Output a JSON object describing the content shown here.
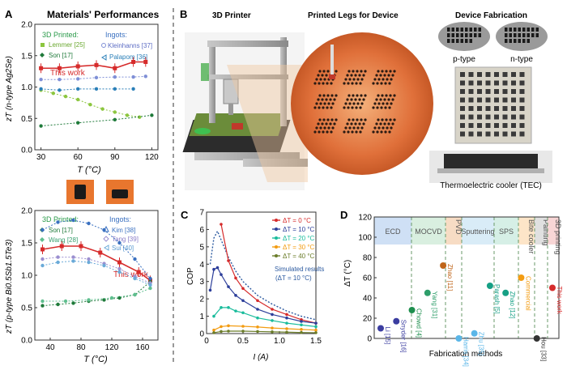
{
  "panel_labels": {
    "a": "A",
    "b": "B",
    "c": "C",
    "d": "D"
  },
  "panel_a": {
    "title": "Materials' Performances",
    "chart_data": [
      {
        "type": "line",
        "title": "",
        "xlabel": "T (°C)",
        "ylabel": "zT (n-type Ag2Se)",
        "xlim": [
          25,
          125
        ],
        "ylim": [
          0.0,
          2.0
        ],
        "xticks": [
          "30",
          "60",
          "90",
          "120"
        ],
        "yticks": [
          "0.0",
          "0.5",
          "1.0",
          "1.5",
          "2.0"
        ],
        "legend_3d": "3D Printed:",
        "legend_ingot": "Ingots:",
        "annotation": "This work",
        "series": [
          {
            "name": "This work",
            "color": "#d62b2b",
            "x": [
              30,
              45,
              60,
              75,
              90,
              105,
              115
            ],
            "y": [
              1.3,
              1.3,
              1.33,
              1.35,
              1.3,
              1.4,
              1.4
            ]
          },
          {
            "name": "Lemmer [25]",
            "color": "#8cc63f",
            "x": [
              30,
              40,
              50,
              60,
              70,
              80,
              90,
              100,
              110
            ],
            "y": [
              0.95,
              0.9,
              0.85,
              0.8,
              0.72,
              0.65,
              0.6,
              0.55,
              0.52
            ]
          },
          {
            "name": "Son [17]",
            "color": "#1f7a3a",
            "x": [
              30,
              60,
              90,
              120
            ],
            "y": [
              0.38,
              0.43,
              0.48,
              0.55
            ]
          },
          {
            "name": "Kleinhanns [37]",
            "color": "#7f8fd6",
            "x": [
              30,
              45,
              60,
              75,
              90,
              105,
              115
            ],
            "y": [
              1.12,
              1.12,
              1.13,
              1.15,
              1.16,
              1.16,
              1.17
            ]
          },
          {
            "name": "Palapom [36]",
            "color": "#2a7fb8",
            "x": [
              30,
              45,
              60,
              75,
              90,
              105
            ],
            "y": [
              0.97,
              0.95,
              0.97,
              0.97,
              0.97,
              0.97
            ]
          }
        ]
      },
      {
        "type": "line",
        "title": "",
        "xlabel": "T (°C)",
        "ylabel": "zT (p-type Bi0.5Sb1.5Te3)",
        "xlim": [
          20,
          180
        ],
        "ylim": [
          0.0,
          2.0
        ],
        "xticks": [
          "40",
          "80",
          "120",
          "160"
        ],
        "yticks": [
          "0.0",
          "0.5",
          "1.0",
          "1.5",
          "2.0"
        ],
        "legend_3d": "3D Printed:",
        "legend_ingot": "Ingots:",
        "annotation": "This work",
        "series": [
          {
            "name": "This work",
            "color": "#d62b2b",
            "x": [
              30,
              55,
              80,
              105,
              130,
              155,
              170
            ],
            "y": [
              1.4,
              1.45,
              1.45,
              1.35,
              1.2,
              1.05,
              0.92
            ]
          },
          {
            "name": "Son [17]",
            "color": "#1f7a3a",
            "x": [
              30,
              50,
              70,
              90,
              110,
              130,
              150,
              170
            ],
            "y": [
              0.53,
              0.55,
              0.57,
              0.6,
              0.62,
              0.65,
              0.7,
              0.9
            ]
          },
          {
            "name": "Wang [28]",
            "color": "#5fbf8f",
            "x": [
              30,
              60,
              90,
              120,
              150,
              170
            ],
            "y": [
              0.6,
              0.6,
              0.62,
              0.65,
              0.7,
              0.8
            ]
          },
          {
            "name": "Kim [38]",
            "color": "#3a70c0",
            "x": [
              30,
              50,
              70,
              90,
              110,
              130,
              150,
              170
            ],
            "y": [
              1.7,
              1.82,
              1.85,
              1.8,
              1.7,
              1.5,
              1.25,
              0.95
            ]
          },
          {
            "name": "Tang [39]",
            "color": "#9b8fd0",
            "x": [
              30,
              50,
              70,
              90,
              110,
              130,
              150,
              170
            ],
            "y": [
              1.25,
              1.28,
              1.28,
              1.25,
              1.18,
              1.1,
              0.98,
              0.88
            ]
          },
          {
            "name": "Sui [40]",
            "color": "#6aaad8",
            "x": [
              30,
              50,
              70,
              90,
              110,
              130,
              150,
              170
            ],
            "y": [
              1.15,
              1.2,
              1.22,
              1.2,
              1.15,
              1.05,
              0.95,
              0.85
            ]
          }
        ]
      }
    ]
  },
  "panel_b": {
    "headings": [
      "3D Printer",
      "Printed Legs for Device",
      "Device Fabrication"
    ],
    "ptype": "p-type",
    "ntype": "n-type",
    "tec": "Thermoelectric cooler (TEC)"
  },
  "panel_c": {
    "chart_data": {
      "type": "line",
      "xlabel": "I (A)",
      "ylabel": "COP",
      "xlim": [
        0,
        1.5
      ],
      "ylim": [
        0,
        7
      ],
      "xticks": [
        "0",
        "0.5",
        "1.0",
        "1.5"
      ],
      "yticks": [
        "0",
        "1",
        "2",
        "3",
        "4",
        "5",
        "6",
        "7"
      ],
      "simulated_label": "Simulated results",
      "simulated_sub": "(ΔT = 10 °C)",
      "series": [
        {
          "name": "ΔT = 0 °C",
          "color": "#d62b2b",
          "x": [
            0.2,
            0.3,
            0.4,
            0.5,
            0.7,
            0.9,
            1.1,
            1.3,
            1.5
          ],
          "y": [
            6.3,
            4.2,
            3.2,
            2.6,
            1.9,
            1.4,
            1.1,
            0.8,
            0.6
          ]
        },
        {
          "name": "ΔT = 10 °C",
          "color": "#2c3e9a",
          "x": [
            0.05,
            0.1,
            0.15,
            0.2,
            0.3,
            0.4,
            0.5,
            0.7,
            0.9,
            1.1,
            1.3,
            1.5
          ],
          "y": [
            2.5,
            3.7,
            3.8,
            3.4,
            2.7,
            2.2,
            1.9,
            1.4,
            1.1,
            0.9,
            0.7,
            0.6
          ]
        },
        {
          "name": "ΔT = 20 °C",
          "color": "#1abc9c",
          "x": [
            0.1,
            0.2,
            0.3,
            0.4,
            0.5,
            0.7,
            0.9,
            1.1,
            1.3,
            1.5
          ],
          "y": [
            1.0,
            1.5,
            1.5,
            1.3,
            1.2,
            0.9,
            0.75,
            0.6,
            0.5,
            0.4
          ]
        },
        {
          "name": "ΔT = 30 °C",
          "color": "#f39c12",
          "x": [
            0.1,
            0.2,
            0.3,
            0.5,
            0.7,
            0.9,
            1.1,
            1.3,
            1.5
          ],
          "y": [
            0.2,
            0.4,
            0.45,
            0.42,
            0.38,
            0.32,
            0.28,
            0.24,
            0.2
          ]
        },
        {
          "name": "ΔT = 40 °C",
          "color": "#6b7d2a",
          "x": [
            0.1,
            0.2,
            0.3,
            0.5,
            0.7,
            0.9,
            1.1,
            1.3,
            1.5
          ],
          "y": [
            0.05,
            0.12,
            0.14,
            0.14,
            0.12,
            0.1,
            0.08,
            0.06,
            0.05
          ]
        }
      ],
      "simulated": {
        "name": "Simulated results",
        "color": "#2c5aa0",
        "x": [
          0.05,
          0.1,
          0.15,
          0.2,
          0.3,
          0.4,
          0.5,
          0.7,
          0.9,
          1.1,
          1.3,
          1.5
        ],
        "y": [
          4.0,
          5.5,
          5.9,
          5.4,
          4.4,
          3.6,
          3.0,
          2.2,
          1.7,
          1.3,
          1.0,
          0.8
        ]
      }
    }
  },
  "panel_d": {
    "chart_data": {
      "type": "scatter",
      "xlabel": "Fabrication methods",
      "ylabel": "ΔT (°C)",
      "ylim": [
        0,
        120
      ],
      "yticks": [
        "0",
        "20",
        "40",
        "60",
        "80",
        "100",
        "120"
      ],
      "categories": [
        "ECD",
        "MOCVD",
        "PVD",
        "Sputtering",
        "SPS",
        "Bite cooler",
        "Painting",
        "3D printing"
      ],
      "points": [
        {
          "label": "Li [15]",
          "value": 10,
          "color": "#3b3da0"
        },
        {
          "label": "Snyder [16]",
          "value": 17,
          "color": "#3b3da0"
        },
        {
          "label": "Chowd [4]",
          "value": 28,
          "color": "#1e8f4e"
        },
        {
          "label": "Yang [31]",
          "value": 45,
          "color": "#2e9e6a"
        },
        {
          "label": "Zhao [11]",
          "value": 72,
          "color": "#c0651a"
        },
        {
          "label": "Harris [34]",
          "value": 0,
          "color": "#5ab6e8"
        },
        {
          "label": "Zhu [35]",
          "value": 5,
          "color": "#5ab6e8"
        },
        {
          "label": "Parash [5]",
          "value": 52,
          "color": "#16a085"
        },
        {
          "label": "Zhao [12]",
          "value": 45,
          "color": "#16a085"
        },
        {
          "label": "Commercial",
          "value": 60,
          "color": "#f39c12"
        },
        {
          "label": "Hou [33]",
          "value": 0,
          "color": "#333333"
        },
        {
          "label": "This work",
          "value": 50,
          "color": "#d62b2b"
        }
      ]
    }
  }
}
